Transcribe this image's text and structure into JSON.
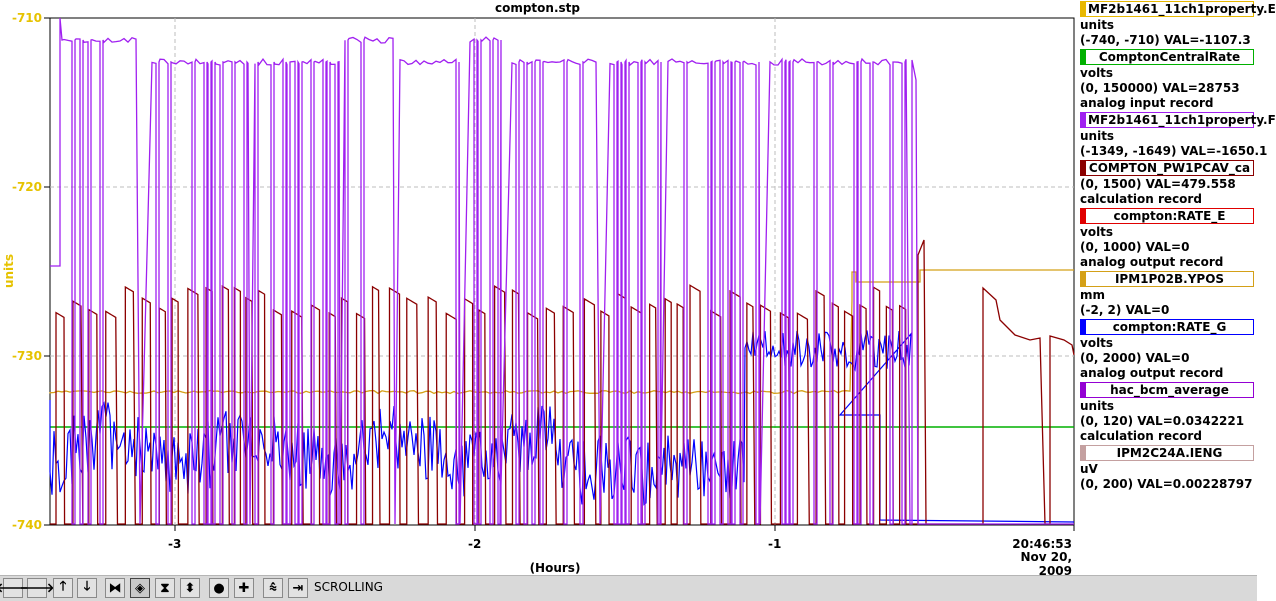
{
  "window": {
    "title": "compton.stp"
  },
  "axes": {
    "y_label": "units",
    "y_ticks": [
      "-710",
      "-720",
      "-730",
      "-740"
    ],
    "x_ticks": [
      "-3",
      "-2",
      "-1"
    ],
    "x_label": "(Hours)",
    "end_time": "20:46:53",
    "end_date": "Nov 20, 2009"
  },
  "legend": [
    {
      "name": "MF2b1461_11ch1property.E",
      "color": "#e8b800",
      "lines": [
        "units",
        "(-740, -710) VAL=-1107.3"
      ]
    },
    {
      "name": "ComptonCentralRate",
      "color": "#00b000",
      "lines": [
        "volts",
        "(0, 150000) VAL=28753",
        "analog input record"
      ]
    },
    {
      "name": "MF2b1461_11ch1property.F",
      "color": "#a020f0",
      "lines": [
        "units",
        "(-1349, -1649) VAL=-1650.1"
      ]
    },
    {
      "name": "COMPTON_PW1PCAV_ca",
      "color": "#8b0000",
      "lines": [
        "(0, 1500) VAL=479.558",
        "calculation record"
      ]
    },
    {
      "name": "compton:RATE_E",
      "color": "#e00000",
      "lines": [
        "volts",
        "(0, 1000) VAL=0",
        "analog output record"
      ]
    },
    {
      "name": "IPM1P02B.YPOS",
      "color": "#d4a017",
      "lines": [
        "mm",
        "(-2, 2) VAL=0"
      ]
    },
    {
      "name": "compton:RATE_G",
      "color": "#0000ff",
      "lines": [
        "volts",
        "(0, 2000) VAL=0",
        "analog output record"
      ]
    },
    {
      "name": "hac_bcm_average",
      "color": "#9400d3",
      "lines": [
        "units",
        "(0, 120) VAL=0.0342221",
        "calculation record"
      ]
    },
    {
      "name": "IPM2C24A.IENG",
      "color": "#c4a0a0",
      "lines": [
        "uV",
        "(0, 200) VAL=0.00228797"
      ]
    }
  ],
  "toolbar": {
    "buttons": [
      {
        "name": "scroll-left-button",
        "icon": "arrow-left-icon",
        "glyph": "🡐"
      },
      {
        "name": "scroll-right-button",
        "icon": "arrow-right-icon",
        "glyph": "🡒"
      },
      {
        "name": "scroll-up-button",
        "icon": "arrow-up-icon",
        "glyph": "🡑"
      },
      {
        "name": "scroll-down-button",
        "icon": "arrow-down-icon",
        "glyph": "🡓"
      },
      {
        "name": "compress-x-button",
        "icon": "compress-horizontal-icon",
        "glyph": "⧓"
      },
      {
        "name": "expand-x-button",
        "icon": "expand-horizontal-icon",
        "glyph": "◈"
      },
      {
        "name": "compress-y-button",
        "icon": "compress-vertical-icon",
        "glyph": "⧗"
      },
      {
        "name": "expand-y-button",
        "icon": "expand-vertical-icon",
        "glyph": "⬍"
      },
      {
        "name": "zoom-out-button",
        "icon": "circle-icon",
        "glyph": "●"
      },
      {
        "name": "zoom-in-button",
        "icon": "plus-icon",
        "glyph": "✚"
      },
      {
        "name": "autoscale-button",
        "icon": "autoscale-icon",
        "glyph": "⩯"
      },
      {
        "name": "go-to-end-button",
        "icon": "jump-to-end-icon",
        "glyph": "⇥"
      }
    ],
    "status": "SCROLLING"
  },
  "colors": {
    "yellow": "#e8b800",
    "green": "#00b000",
    "purple": "#a020f0",
    "darkred": "#8b0000",
    "orange": "#d4a017",
    "blue": "#0000ff",
    "grid": "#bdbdbd"
  }
}
